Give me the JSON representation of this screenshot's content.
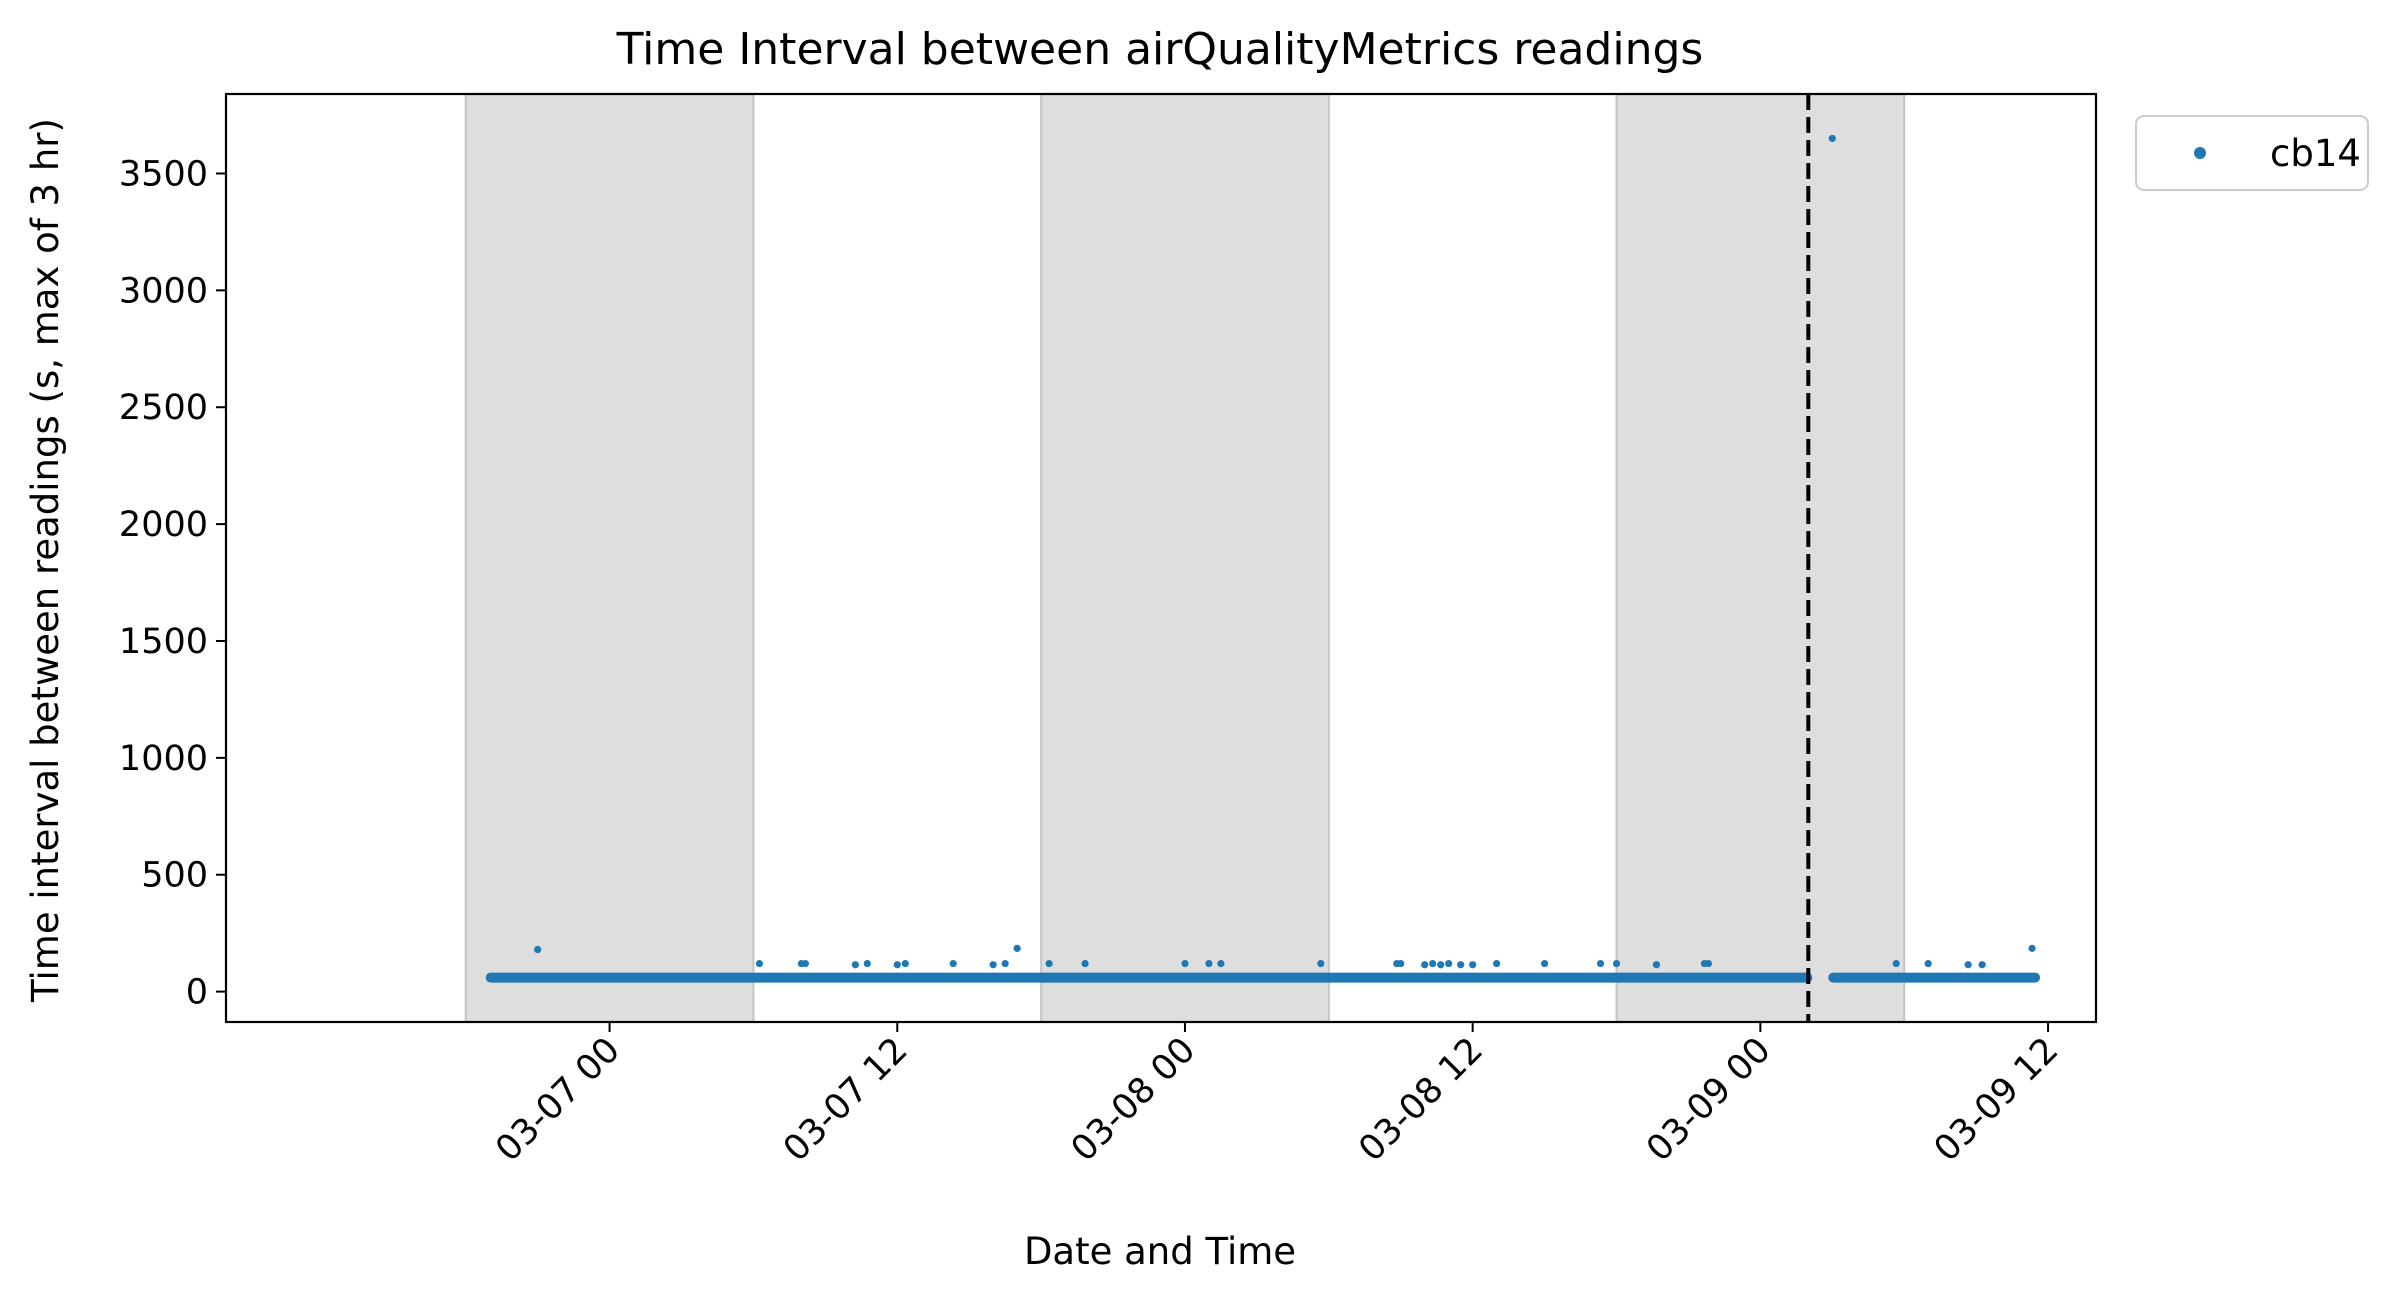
{
  "chart_data": {
    "type": "scatter",
    "title": "Time Interval between airQualityMetrics readings",
    "xlabel": "Date and Time",
    "ylabel": "Time interval between readings (s, max of 3 hr)",
    "x_axis": {
      "kind": "datetime",
      "range": [
        "2025-03-06 08:00",
        "2025-03-09 14:00"
      ],
      "ticks": [
        {
          "x": "2025-03-07 00:00",
          "label": "03-07 00"
        },
        {
          "x": "2025-03-07 12:00",
          "label": "03-07 12"
        },
        {
          "x": "2025-03-08 00:00",
          "label": "03-08 00"
        },
        {
          "x": "2025-03-08 12:00",
          "label": "03-08 12"
        },
        {
          "x": "2025-03-09 00:00",
          "label": "03-09 00"
        },
        {
          "x": "2025-03-09 12:00",
          "label": "03-09 12"
        }
      ]
    },
    "y_axis": {
      "range": [
        -130,
        3840
      ],
      "ticks": [
        0,
        500,
        1000,
        1500,
        2000,
        2500,
        3000,
        3500
      ]
    },
    "shaded_regions": [
      {
        "start": "2025-03-06 18:00",
        "end": "2025-03-07 06:00"
      },
      {
        "start": "2025-03-07 18:00",
        "end": "2025-03-08 06:00"
      },
      {
        "start": "2025-03-08 18:00",
        "end": "2025-03-09 06:00"
      }
    ],
    "vline": {
      "x": "2025-03-09 02:00",
      "style": "dashed"
    },
    "legend": {
      "position": "outside-top-right",
      "entries": [
        "cb14"
      ]
    },
    "grid": false,
    "series": [
      {
        "name": "cb14",
        "color": "#1f77b4",
        "baseline": {
          "value": 60,
          "segments": [
            {
              "start": "2025-03-06 19:00",
              "end": "2025-03-09 02:00"
            },
            {
              "start": "2025-03-09 03:00",
              "end": "2025-03-09 11:30"
            }
          ]
        },
        "points": [
          {
            "x": "2025-03-06 21:00",
            "y": 180
          },
          {
            "x": "2025-03-07 06:15",
            "y": 120
          },
          {
            "x": "2025-03-07 08:00",
            "y": 120
          },
          {
            "x": "2025-03-07 08:10",
            "y": 120
          },
          {
            "x": "2025-03-07 10:15",
            "y": 115
          },
          {
            "x": "2025-03-07 10:45",
            "y": 120
          },
          {
            "x": "2025-03-07 12:00",
            "y": 115
          },
          {
            "x": "2025-03-07 12:20",
            "y": 120
          },
          {
            "x": "2025-03-07 14:20",
            "y": 120
          },
          {
            "x": "2025-03-07 16:00",
            "y": 115
          },
          {
            "x": "2025-03-07 16:30",
            "y": 120
          },
          {
            "x": "2025-03-07 17:00",
            "y": 185
          },
          {
            "x": "2025-03-07 18:20",
            "y": 120
          },
          {
            "x": "2025-03-07 19:50",
            "y": 120
          },
          {
            "x": "2025-03-08 00:00",
            "y": 120
          },
          {
            "x": "2025-03-08 01:00",
            "y": 120
          },
          {
            "x": "2025-03-08 01:30",
            "y": 120
          },
          {
            "x": "2025-03-08 05:40",
            "y": 120
          },
          {
            "x": "2025-03-08 08:50",
            "y": 120
          },
          {
            "x": "2025-03-08 09:00",
            "y": 120
          },
          {
            "x": "2025-03-08 10:00",
            "y": 115
          },
          {
            "x": "2025-03-08 10:20",
            "y": 120
          },
          {
            "x": "2025-03-08 10:40",
            "y": 115
          },
          {
            "x": "2025-03-08 11:00",
            "y": 120
          },
          {
            "x": "2025-03-08 11:30",
            "y": 115
          },
          {
            "x": "2025-03-08 12:00",
            "y": 115
          },
          {
            "x": "2025-03-08 13:00",
            "y": 120
          },
          {
            "x": "2025-03-08 15:00",
            "y": 120
          },
          {
            "x": "2025-03-08 17:20",
            "y": 120
          },
          {
            "x": "2025-03-08 18:00",
            "y": 120
          },
          {
            "x": "2025-03-08 19:40",
            "y": 115
          },
          {
            "x": "2025-03-08 21:40",
            "y": 120
          },
          {
            "x": "2025-03-08 21:50",
            "y": 120
          },
          {
            "x": "2025-03-09 03:00",
            "y": 3650
          },
          {
            "x": "2025-03-09 05:40",
            "y": 120
          },
          {
            "x": "2025-03-09 07:00",
            "y": 120
          },
          {
            "x": "2025-03-09 08:40",
            "y": 115
          },
          {
            "x": "2025-03-09 09:15",
            "y": 115
          },
          {
            "x": "2025-03-09 11:20",
            "y": 185
          }
        ]
      }
    ]
  }
}
